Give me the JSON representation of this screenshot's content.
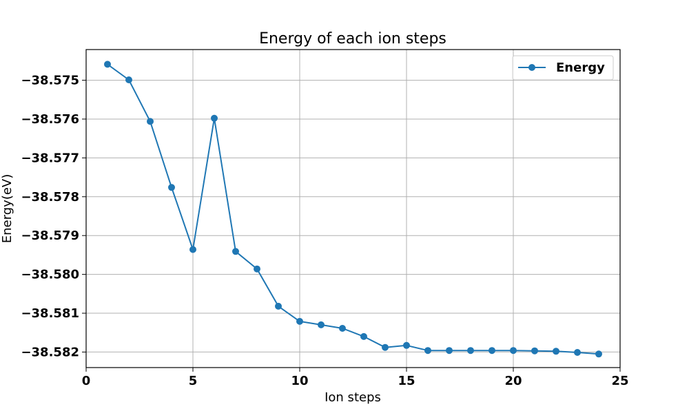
{
  "chart_data": {
    "type": "line",
    "title": "Energy of each ion steps",
    "xlabel": "Ion steps",
    "ylabel": "Energy(eV)",
    "xlim": [
      0,
      25
    ],
    "ylim": [
      -38.5824,
      -38.57421
    ],
    "xticks": [
      0,
      5,
      10,
      15,
      20,
      25
    ],
    "xtick_labels": [
      "0",
      "5",
      "10",
      "15",
      "20",
      "25"
    ],
    "yticks": [
      -38.575,
      -38.576,
      -38.577,
      -38.578,
      -38.579,
      -38.58,
      -38.581,
      -38.582
    ],
    "ytick_labels": [
      "−38.575",
      "−38.576",
      "−38.577",
      "−38.578",
      "−38.579",
      "−38.580",
      "−38.581",
      "−38.582"
    ],
    "grid": true,
    "legend_position": "top-right",
    "series": [
      {
        "name": "Energy",
        "color": "#1f77b4",
        "marker": "circle",
        "x": [
          1,
          2,
          3,
          4,
          5,
          6,
          7,
          8,
          9,
          10,
          11,
          12,
          13,
          14,
          15,
          16,
          17,
          18,
          19,
          20,
          21,
          22,
          23,
          24
        ],
        "y": [
          -38.57459,
          -38.57499,
          -38.57606,
          -38.57776,
          -38.57936,
          -38.57598,
          -38.57941,
          -38.57986,
          -38.58082,
          -38.58121,
          -38.5813,
          -38.58139,
          -38.5816,
          -38.58188,
          -38.58183,
          -38.58196,
          -38.58196,
          -38.58196,
          -38.58196,
          -38.58196,
          -38.58197,
          -38.58198,
          -38.58201,
          -38.58205
        ]
      }
    ]
  }
}
